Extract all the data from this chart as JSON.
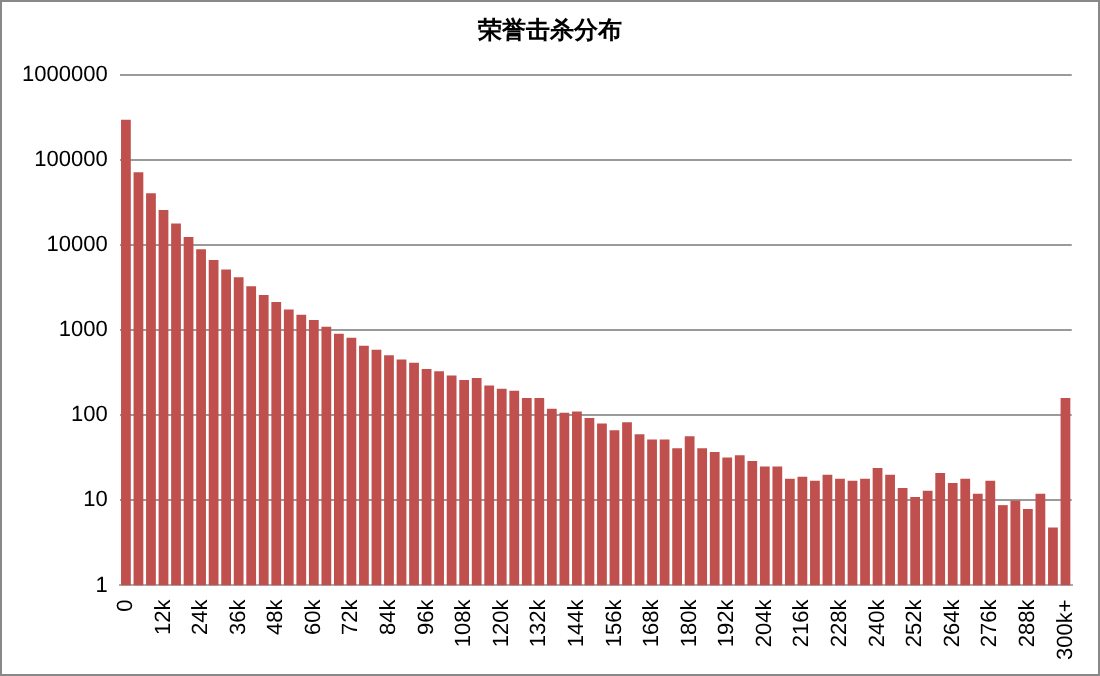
{
  "chart_data": {
    "type": "bar",
    "title": "荣誉击杀分布",
    "categories": [
      "0",
      null,
      null,
      "12k",
      null,
      null,
      "24k",
      null,
      null,
      "36k",
      null,
      null,
      "48k",
      null,
      null,
      "60k",
      null,
      null,
      "72k",
      null,
      null,
      "84k",
      null,
      null,
      "96k",
      null,
      null,
      "108k",
      null,
      null,
      "120k",
      null,
      null,
      "132k",
      null,
      null,
      "144k",
      null,
      null,
      "156k",
      null,
      null,
      "168k",
      null,
      null,
      "180k",
      null,
      null,
      "192k",
      null,
      null,
      "204k",
      null,
      null,
      "216k",
      null,
      null,
      "228k",
      null,
      null,
      "240k",
      null,
      null,
      "252k",
      null,
      null,
      "264k",
      null,
      null,
      "276k",
      null,
      null,
      "288k",
      null,
      null,
      "300k+"
    ],
    "values": [
      300000,
      72000,
      41000,
      26000,
      18000,
      12500,
      9000,
      6700,
      5200,
      4200,
      3300,
      2600,
      2150,
      1760,
      1520,
      1320,
      1100,
      910,
      820,
      660,
      590,
      510,
      455,
      415,
      350,
      330,
      295,
      260,
      275,
      225,
      205,
      195,
      160,
      160,
      120,
      107,
      111,
      93,
      80,
      67,
      83,
      60,
      52,
      52,
      41,
      57,
      41,
      37,
      32,
      34,
      29,
      25,
      25,
      18,
      19,
      17,
      20,
      18,
      17,
      18,
      24,
      20,
      14,
      11,
      13,
      21,
      16,
      18,
      12,
      17,
      8.8,
      10,
      7.9,
      12,
      4.8,
      160
    ],
    "color": "#c0504d",
    "log": "y",
    "ylim": [
      1,
      1000000
    ],
    "yticks": [
      1,
      10,
      100,
      1000,
      10000,
      100000,
      1000000
    ],
    "grid": "y",
    "legend": false
  }
}
